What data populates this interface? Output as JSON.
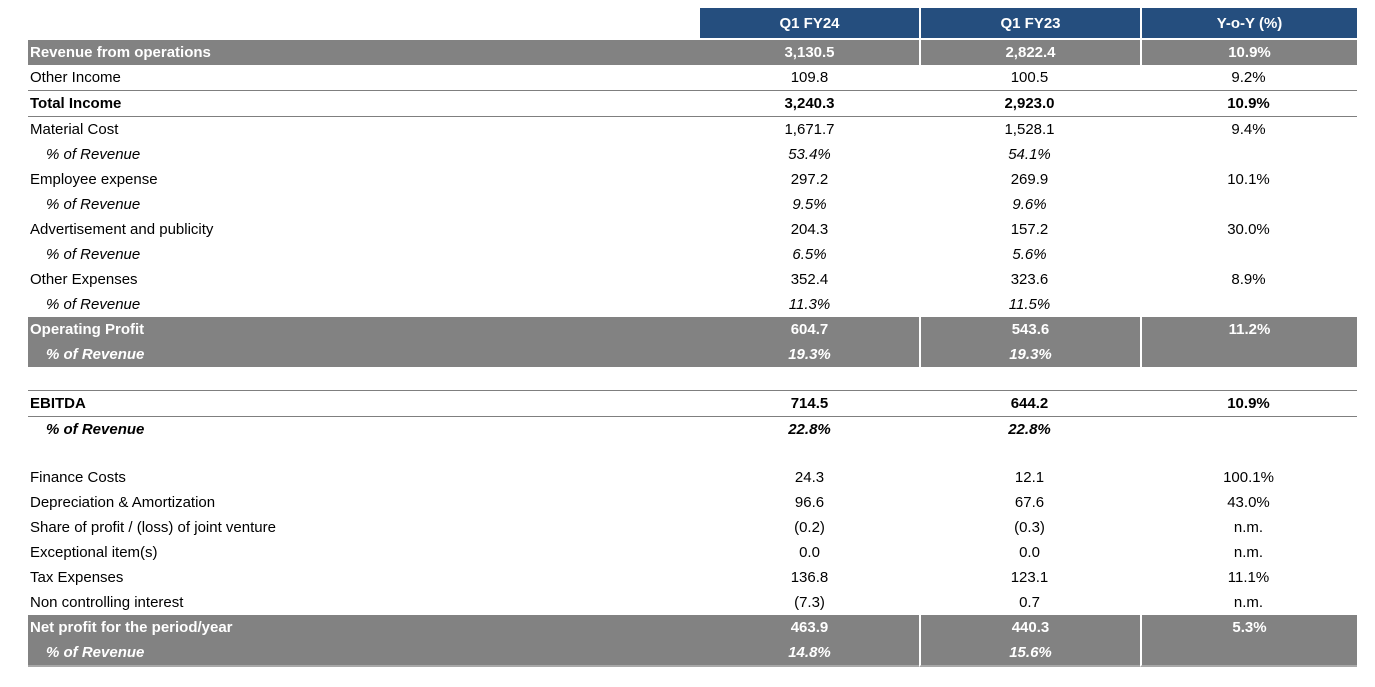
{
  "colors": {
    "header_bg": "#254E7E",
    "band_bg": "#828282",
    "rule": "#7f7f7f"
  },
  "table": {
    "headers": {
      "label": "",
      "q1fy24": "Q1 FY24",
      "q1fy23": "Q1 FY23",
      "yoy": "Y-o-Y (%)"
    },
    "rows": [
      {
        "label": "Revenue from operations",
        "q1fy24": "3,130.5",
        "q1fy23": "2,822.4",
        "yoy": "10.9%"
      },
      {
        "label": "Other Income",
        "q1fy24": "109.8",
        "q1fy23": "100.5",
        "yoy": "9.2%"
      },
      {
        "label": "Total Income",
        "q1fy24": "3,240.3",
        "q1fy23": "2,923.0",
        "yoy": "10.9%"
      },
      {
        "label": "Material Cost",
        "q1fy24": "1,671.7",
        "q1fy23": "1,528.1",
        "yoy": "9.4%"
      },
      {
        "label": "% of Revenue",
        "q1fy24": "53.4%",
        "q1fy23": "54.1%",
        "yoy": ""
      },
      {
        "label": "Employee expense",
        "q1fy24": "297.2",
        "q1fy23": "269.9",
        "yoy": "10.1%"
      },
      {
        "label": "% of Revenue",
        "q1fy24": "9.5%",
        "q1fy23": "9.6%",
        "yoy": ""
      },
      {
        "label": "Advertisement and publicity",
        "q1fy24": "204.3",
        "q1fy23": "157.2",
        "yoy": "30.0%"
      },
      {
        "label": "% of Revenue",
        "q1fy24": "6.5%",
        "q1fy23": "5.6%",
        "yoy": ""
      },
      {
        "label": "Other Expenses",
        "q1fy24": "352.4",
        "q1fy23": "323.6",
        "yoy": "8.9%"
      },
      {
        "label": "% of Revenue",
        "q1fy24": "11.3%",
        "q1fy23": "11.5%",
        "yoy": ""
      },
      {
        "label": "Operating Profit",
        "q1fy24": "604.7",
        "q1fy23": "543.6",
        "yoy": "11.2%"
      },
      {
        "label": "% of Revenue",
        "q1fy24": "19.3%",
        "q1fy23": "19.3%",
        "yoy": ""
      },
      {
        "label": "EBITDA",
        "q1fy24": "714.5",
        "q1fy23": "644.2",
        "yoy": "10.9%"
      },
      {
        "label": "% of Revenue",
        "q1fy24": "22.8%",
        "q1fy23": "22.8%",
        "yoy": ""
      },
      {
        "label": "Finance Costs",
        "q1fy24": "24.3",
        "q1fy23": "12.1",
        "yoy": "100.1%"
      },
      {
        "label": "Depreciation & Amortization",
        "q1fy24": "96.6",
        "q1fy23": "67.6",
        "yoy": "43.0%"
      },
      {
        "label": "Share of profit / (loss) of joint venture",
        "q1fy24": "(0.2)",
        "q1fy23": "(0.3)",
        "yoy": "n.m."
      },
      {
        "label": "Exceptional item(s)",
        "q1fy24": "0.0",
        "q1fy23": "0.0",
        "yoy": "n.m."
      },
      {
        "label": "Tax Expenses",
        "q1fy24": "136.8",
        "q1fy23": "123.1",
        "yoy": "11.1%"
      },
      {
        "label": "Non controlling interest",
        "q1fy24": "(7.3)",
        "q1fy23": "0.7",
        "yoy": "n.m."
      },
      {
        "label": "Net profit for the period/year",
        "q1fy24": "463.9",
        "q1fy23": "440.3",
        "yoy": "5.3%"
      },
      {
        "label": "% of Revenue",
        "q1fy24": "14.8%",
        "q1fy23": "15.6%",
        "yoy": ""
      }
    ]
  }
}
